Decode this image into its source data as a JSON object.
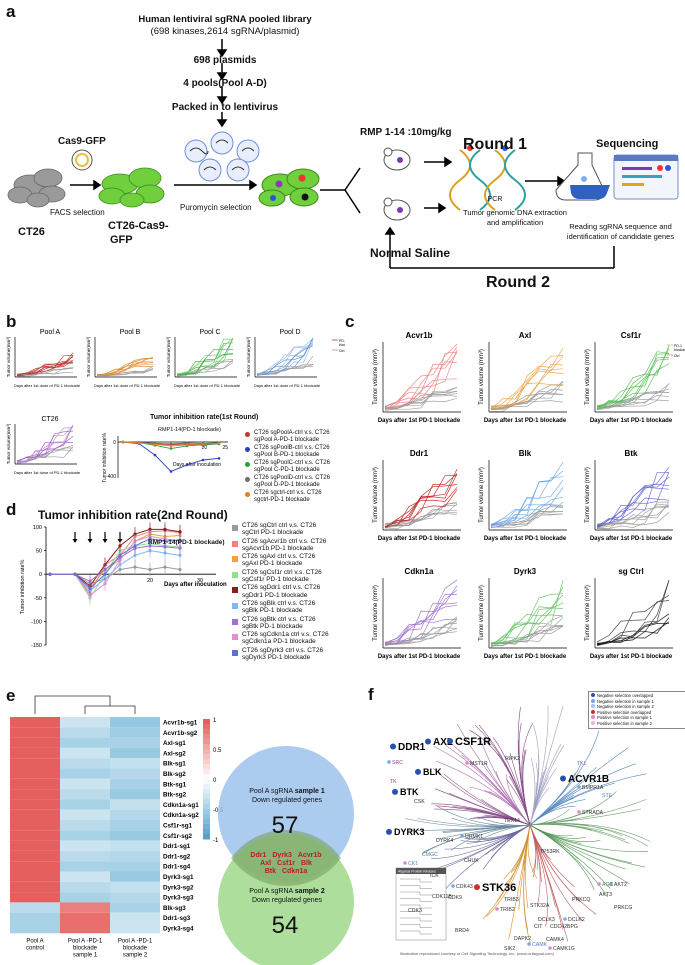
{
  "panel_a": {
    "label": "a",
    "lib_line1": "Human lentiviral sgRNA pooled library",
    "lib_line2": "(698 kinases,2614 sgRNA/plasmid)",
    "plasmids": "698 plasmids",
    "pools": "4 pools(Pool A-D)",
    "packed": "Packed in to lentivirus",
    "cas9": "Cas9-GFP",
    "facs": "FACS selection",
    "ct26": "CT26",
    "ct26cas9_l1": "CT26-Cas9-",
    "ct26cas9_l2": "GFP",
    "puro": "Puromycin selection",
    "rmp": "RMP 1-14 :10mg/kg",
    "round1": "Round 1",
    "pcr": "PCR",
    "tumor_dna_l1": "Tumor genomic DNA extraction",
    "tumor_dna_l2": "and amplification",
    "sequencing": "Sequencing",
    "reading_l1": "Reading sgRNA sequence and",
    "reading_l2": "identification of candidate genes",
    "normal_saline": "Normal Saline",
    "round2": "Round 2"
  },
  "panel_b": {
    "label": "b",
    "ylabel": "Tumor volume(mm³)",
    "xlabel": "Days after 1st dose of PD-1 blockade",
    "titles": [
      "Pool A",
      "Pool B",
      "Pool C",
      "Pool D",
      "CT26"
    ],
    "legend_mini": [
      "PD-1",
      "blockade",
      "Ctrl"
    ],
    "inhib_title": "Tumor inhibition rate(1st Round)",
    "inhib_ylabel": "Tumor inhibition rate%",
    "inhib_xlabel": "Days after inoculation",
    "inhib_annot": "RMP1-14(PD-1 blockade)",
    "legend": [
      {
        "l1": "CT26 sgPoolA-ctrl v.s. CT26",
        "l2": "sgPool A-PD-1 blockade",
        "color": "#c0392b"
      },
      {
        "l1": "CT26 sgPoolB-ctrl v.s. CT26",
        "l2": "sgPool B-PD-1 blockade",
        "color": "#2b3fbf"
      },
      {
        "l1": "CT26 sgPoolC-ctrl v.s. CT26",
        "l2": "sgPool C-PD-1 blockade",
        "color": "#2e9e3a"
      },
      {
        "l1": "CT26 sgPoolD-ctrl v.s. CT26",
        "l2": "sgPool D-PD-1 blockade",
        "color": "#6e6e6e"
      },
      {
        "l1": "CT26 sgctrl-ctrl v.s. CT26",
        "l2": "sgctrl-PD-1 blockade",
        "color": "#e67e22"
      }
    ]
  },
  "panel_c": {
    "label": "c",
    "ylabel": "Tumor volume (mm³)",
    "xlabel": "Days after 1st  PD-1 blockade",
    "genes": [
      "Acvr1b",
      "Axl",
      "Csf1r",
      "Ddr1",
      "Blk",
      "Btk",
      "Cdkn1a",
      "Dyrk3",
      "sg Ctrl"
    ],
    "legend_mini": [
      "PD-1",
      "blockade",
      "Ctrl"
    ]
  },
  "panel_d": {
    "label": "d",
    "title": "Tumor inhibition rate(2nd Round)",
    "ylabel": "Tumor inhibition rate%",
    "xlabel": "Days after inoculation",
    "annot": "RMP1-14(PD-1 blockade)",
    "legend": [
      {
        "l1": "CT26 sgCtrl ctrl v.s. CT26",
        "l2": "sgCtrl PD-1 blockade",
        "color": "#9a9a9a"
      },
      {
        "l1": "CT26 sgAcvr1b ctrl v.s. CT26",
        "l2": "sgAcvr1b PD-1 blockade",
        "color": "#f08080"
      },
      {
        "l1": "CT26 sgAxl ctrl v.s. CT26",
        "l2": "sgAxl PD-1 blockade",
        "color": "#f0a040"
      },
      {
        "l1": "CT26 sgCsf1r ctrl v.s. CT26",
        "l2": "sgCsf1r PD-1 blockade",
        "color": "#90e090"
      },
      {
        "l1": "CT26 sgDdr1 ctrl v.s. CT26",
        "l2": "sgDdr1 PD-1 blockade",
        "color": "#8b1a1a"
      },
      {
        "l1": "CT26 sgBlk ctrl v.s. CT26",
        "l2": "sgBlk PD-1 blockade",
        "color": "#80b8f0"
      },
      {
        "l1": "CT26 sgBtk ctrl v.s. CT26",
        "l2": "sgBtk PD-1 blockade",
        "color": "#a070d0"
      },
      {
        "l1": "CT26 sgCdkn1a ctrl v.s. CT26",
        "l2": "sgCdkn1a PD-1 blockade",
        "color": "#e090d0"
      },
      {
        "l1": "CT26 sgDyrk3 ctrl v.s. CT26",
        "l2": "sgDyrk3 PD-1 blockade",
        "color": "#6070d0"
      }
    ]
  },
  "panel_e": {
    "label": "e",
    "rows": [
      "Acvr1b-sg1",
      "Acvr1b-sg2",
      "Axl-sg1",
      "Axl-sg2",
      "Blk-sg1",
      "Blk-sg2",
      "Btk-sg1",
      "Btk-sg2",
      "Cdkn1a-sg1",
      "Cdkn1a-sg2",
      "Csf1r-sg1",
      "Csf1r-sg2",
      "Ddr1-sg1",
      "Ddr1-sg2",
      "Ddr1-sg4",
      "Dyrk3-sg1",
      "Dyrk3-sg2",
      "Dyrk3-sg3",
      "Blk-sg3",
      "Ddr1-sg3",
      "Dyrk3-sg4"
    ],
    "cols": [
      {
        "l1": "Pool A",
        "l2": "control",
        "l3": ""
      },
      {
        "l1": "Pool A -PD-1",
        "l2": "blockade",
        "l3": "sample 1"
      },
      {
        "l1": "Pool A -PD-1",
        "l2": "blockade",
        "l3": "sample 2"
      }
    ],
    "scale": [
      "1",
      "0.5",
      "0",
      "-0.5",
      "-1"
    ],
    "venn_top_l1": "Pool A sgRNA",
    "venn_top_bold1": "sample 1",
    "venn_top_l2": "Down regulated genes",
    "venn_top_num": "57",
    "venn_bot_l1": "Pool A sgRNA",
    "venn_bot_bold1": "sample 2",
    "venn_bot_l2": "Down regulated genes",
    "venn_bot_num": "54",
    "venn_overlap": [
      "Ddr1",
      "Dyrk3",
      "Acvr1b",
      "Axl",
      "Csf1r",
      "Blk",
      "Btk",
      "Cdkn1a"
    ]
  },
  "panel_f": {
    "label": "f",
    "legend": [
      {
        "text": "Negative selection overlapped",
        "color": "#2b4fb0"
      },
      {
        "text": "Negative selection in sample 1",
        "color": "#7ea6e0"
      },
      {
        "text": "Negative selection in sample 2",
        "color": "#9fc5f0"
      },
      {
        "text": "Positive selection overlapped",
        "color": "#d03030"
      },
      {
        "text": "Positive selection in sample 1",
        "color": "#e08ac0"
      },
      {
        "text": "Positive selection in sample 2",
        "color": "#f0b0d8"
      }
    ],
    "big": [
      "DDR1",
      "AXL",
      "CSF1R",
      "BLK",
      "BTK",
      "ACVR1B",
      "DYRK3",
      "STK36"
    ],
    "small": [
      "SRC",
      "TK",
      "CSK",
      "MST1R",
      "RIPK2",
      "TKL",
      "BMPR1A",
      "STE",
      "TEX14",
      "STRADA",
      "DYRK4",
      "CMGC",
      "UHMK1",
      "CHUK",
      "TP53RK",
      "CK1",
      "CDK11B",
      "CDK9",
      "CDK43",
      "CDK3",
      "TRIB3",
      "TRIB2",
      "STK32A",
      "PRKCQ",
      "AKT2",
      "AKT3",
      "PRKCG",
      "AGC",
      "CIT",
      "CDC42BPG",
      "DCLK2",
      "DCLK3",
      "CAMK4",
      "CAMK1G",
      "DAPK2",
      "SIK2",
      "CAMK",
      "BRD4",
      "ICK"
    ],
    "footer": "Illustration reproduced courtesy of Cell Signaling Technology, Inc. (www.cellsignal.com)",
    "box_title": "Atypical Protein Kinases"
  }
}
